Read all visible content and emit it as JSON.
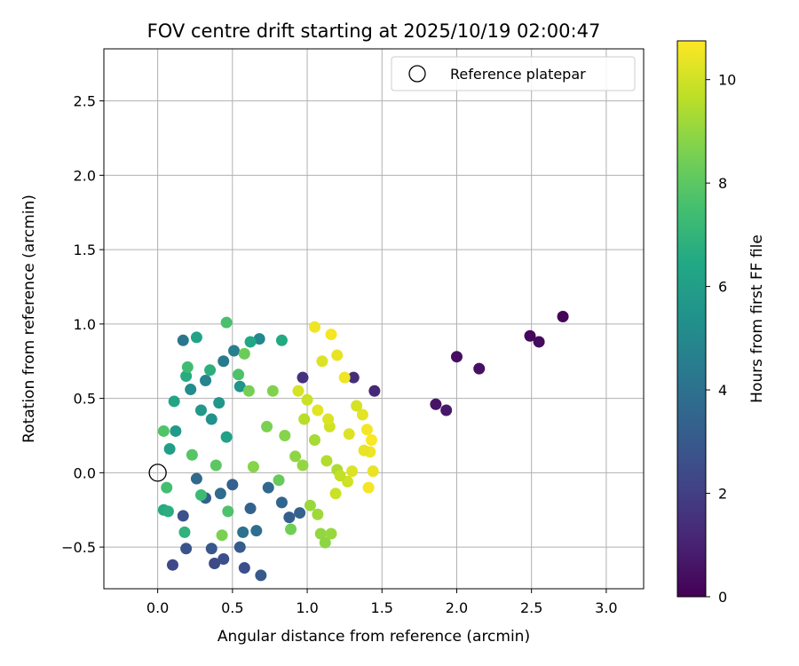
{
  "chart_data": {
    "type": "scatter",
    "title": "FOV centre drift starting at 2025/10/19 02:00:47",
    "xlabel": "Angular distance from reference (arcmin)",
    "ylabel": "Rotation from reference (arcmin)",
    "xlim": [
      -0.36,
      3.25
    ],
    "ylim": [
      -0.78,
      2.85
    ],
    "xticks": [
      0.0,
      0.5,
      1.0,
      1.5,
      2.0,
      2.5,
      3.0
    ],
    "xtick_labels": [
      "0.0",
      "0.5",
      "1.0",
      "1.5",
      "2.0",
      "2.5",
      "3.0"
    ],
    "yticks": [
      -0.5,
      0.0,
      0.5,
      1.0,
      1.5,
      2.0,
      2.5
    ],
    "ytick_labels": [
      "−0.5",
      "0.0",
      "0.5",
      "1.0",
      "1.5",
      "2.0",
      "2.5"
    ],
    "grid": true,
    "legend": {
      "position": "top-right",
      "entries": [
        {
          "label": "Reference platepar",
          "marker": "open-circle",
          "x": 0.0,
          "y": 0.0
        }
      ]
    },
    "colorbar": {
      "label": "Hours from first FF file",
      "colormap": "viridis",
      "range": [
        0,
        10.75
      ],
      "ticks": [
        0,
        2,
        4,
        6,
        8,
        10
      ],
      "tick_labels": [
        "0",
        "2",
        "4",
        "6",
        "8",
        "10"
      ]
    },
    "series": [
      {
        "name": "Drift samples",
        "fields": [
          "x",
          "y",
          "hours"
        ],
        "points": [
          [
            2.71,
            1.05,
            0.1
          ],
          [
            2.49,
            0.92,
            0.2
          ],
          [
            2.55,
            0.88,
            0.3
          ],
          [
            2.0,
            0.78,
            0.4
          ],
          [
            2.15,
            0.7,
            0.5
          ],
          [
            1.86,
            0.46,
            0.6
          ],
          [
            1.93,
            0.42,
            0.7
          ],
          [
            1.45,
            0.55,
            1.2
          ],
          [
            1.31,
            0.64,
            1.4
          ],
          [
            0.97,
            0.64,
            1.5
          ],
          [
            0.1,
            -0.62,
            2.3
          ],
          [
            0.38,
            -0.61,
            2.4
          ],
          [
            0.44,
            -0.58,
            2.6
          ],
          [
            0.19,
            -0.51,
            2.8
          ],
          [
            0.36,
            -0.51,
            2.9
          ],
          [
            0.58,
            -0.64,
            2.6
          ],
          [
            0.69,
            -0.69,
            3.0
          ],
          [
            0.55,
            -0.5,
            3.1
          ],
          [
            0.17,
            -0.29,
            2.7
          ],
          [
            0.32,
            -0.17,
            3.2
          ],
          [
            0.5,
            -0.08,
            3.3
          ],
          [
            0.62,
            -0.24,
            3.4
          ],
          [
            0.83,
            -0.2,
            3.5
          ],
          [
            0.74,
            -0.1,
            3.6
          ],
          [
            0.88,
            -0.3,
            3.2
          ],
          [
            0.95,
            -0.27,
            3.4
          ],
          [
            0.42,
            -0.14,
            3.8
          ],
          [
            0.66,
            -0.39,
            3.9
          ],
          [
            0.57,
            -0.4,
            4.0
          ],
          [
            0.26,
            -0.04,
            3.7
          ],
          [
            0.17,
            0.89,
            4.2
          ],
          [
            0.44,
            0.75,
            4.4
          ],
          [
            0.51,
            0.82,
            4.6
          ],
          [
            0.68,
            0.9,
            5.0
          ],
          [
            0.32,
            0.62,
            4.8
          ],
          [
            0.22,
            0.56,
            5.2
          ],
          [
            0.36,
            0.36,
            5.4
          ],
          [
            0.55,
            0.58,
            5.5
          ],
          [
            0.41,
            0.47,
            5.6
          ],
          [
            0.29,
            0.42,
            5.7
          ],
          [
            0.12,
            0.28,
            5.8
          ],
          [
            0.08,
            0.16,
            6.0
          ],
          [
            0.46,
            0.24,
            6.1
          ],
          [
            0.26,
            0.91,
            6.2
          ],
          [
            0.62,
            0.88,
            6.4
          ],
          [
            0.83,
            0.89,
            6.5
          ],
          [
            0.11,
            0.48,
            6.3
          ],
          [
            0.19,
            0.65,
            6.6
          ],
          [
            0.35,
            0.69,
            6.8
          ],
          [
            0.04,
            -0.25,
            6.5
          ],
          [
            0.07,
            -0.26,
            6.7
          ],
          [
            0.18,
            -0.4,
            6.9
          ],
          [
            0.46,
            1.01,
            7.6
          ],
          [
            0.2,
            0.71,
            7.4
          ],
          [
            0.54,
            0.66,
            7.7
          ],
          [
            0.04,
            0.28,
            7.8
          ],
          [
            0.06,
            -0.1,
            7.5
          ],
          [
            0.29,
            -0.15,
            7.3
          ],
          [
            0.47,
            -0.26,
            7.7
          ],
          [
            0.23,
            0.12,
            7.9
          ],
          [
            0.39,
            0.05,
            8.0
          ],
          [
            0.58,
            0.8,
            8.3
          ],
          [
            0.61,
            0.55,
            8.5
          ],
          [
            0.73,
            0.31,
            8.6
          ],
          [
            0.85,
            0.25,
            8.8
          ],
          [
            0.92,
            0.11,
            8.9
          ],
          [
            0.77,
            0.55,
            8.7
          ],
          [
            0.81,
            -0.05,
            8.2
          ],
          [
            0.89,
            -0.38,
            8.4
          ],
          [
            0.43,
            -0.42,
            8.6
          ],
          [
            0.64,
            0.04,
            8.8
          ],
          [
            0.97,
            0.05,
            9.0
          ],
          [
            1.02,
            -0.22,
            9.1
          ],
          [
            1.07,
            -0.28,
            9.2
          ],
          [
            1.09,
            -0.41,
            9.0
          ],
          [
            1.16,
            -0.41,
            9.1
          ],
          [
            1.12,
            -0.47,
            8.9
          ],
          [
            1.05,
            0.22,
            9.3
          ],
          [
            1.13,
            0.08,
            9.5
          ],
          [
            1.2,
            0.02,
            9.4
          ],
          [
            0.98,
            0.36,
            9.6
          ],
          [
            1.1,
            0.75,
            10.2
          ],
          [
            1.05,
            0.98,
            10.5
          ],
          [
            1.16,
            0.93,
            10.6
          ],
          [
            1.2,
            0.79,
            10.4
          ],
          [
            1.25,
            0.64,
            10.5
          ],
          [
            1.37,
            0.39,
            10.3
          ],
          [
            1.33,
            0.45,
            10.1
          ],
          [
            1.4,
            0.29,
            10.6
          ],
          [
            1.43,
            0.22,
            10.7
          ],
          [
            1.42,
            0.14,
            10.5
          ],
          [
            1.44,
            0.01,
            10.4
          ],
          [
            1.41,
            -0.1,
            10.6
          ],
          [
            1.3,
            0.01,
            10.2
          ],
          [
            1.27,
            -0.06,
            10.0
          ],
          [
            1.19,
            -0.14,
            9.9
          ],
          [
            1.22,
            -0.02,
            9.8
          ],
          [
            1.38,
            0.15,
            10.4
          ],
          [
            1.28,
            0.26,
            10.2
          ],
          [
            1.15,
            0.31,
            10.0
          ],
          [
            1.0,
            0.49,
            9.9
          ],
          [
            0.94,
            0.55,
            10.1
          ],
          [
            1.07,
            0.42,
            10.3
          ],
          [
            1.14,
            0.36,
            10.2
          ]
        ]
      }
    ]
  }
}
